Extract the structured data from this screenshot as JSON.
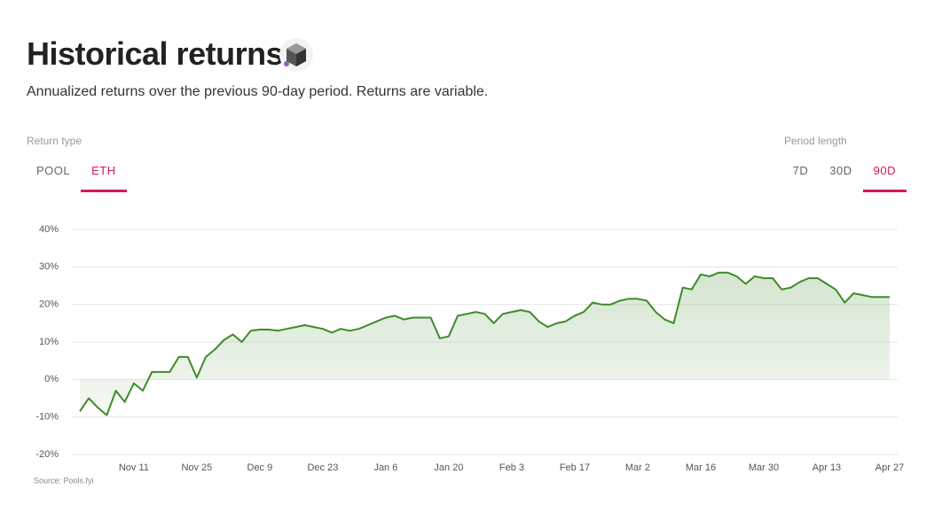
{
  "header": {
    "title": "Historical returns",
    "subtitle": "Annualized returns over the previous 90-day period. Returns are variable."
  },
  "controls": {
    "return_type": {
      "label": "Return type",
      "options": [
        "POOL",
        "ETH"
      ],
      "selected": 1
    },
    "period_length": {
      "label": "Period length",
      "options": [
        "7D",
        "30D",
        "90D"
      ],
      "selected": 2
    }
  },
  "chart_data": {
    "type": "line",
    "source": "Source: Pools.fyi",
    "grid": true,
    "color": "#3f8a2c",
    "categories": [
      null,
      null,
      null,
      null,
      null,
      null,
      "Nov 11",
      null,
      null,
      null,
      null,
      null,
      null,
      "Nov 25",
      null,
      null,
      null,
      null,
      null,
      null,
      "Dec 9",
      null,
      null,
      null,
      null,
      null,
      null,
      "Dec 23",
      null,
      null,
      null,
      null,
      null,
      null,
      "Jan 6",
      null,
      null,
      null,
      null,
      null,
      null,
      "Jan 20",
      null,
      null,
      null,
      null,
      null,
      null,
      "Feb 3",
      null,
      null,
      null,
      null,
      null,
      null,
      "Feb 17",
      null,
      null,
      null,
      null,
      null,
      null,
      "Mar 2",
      null,
      null,
      null,
      null,
      null,
      null,
      "Mar 16",
      null,
      null,
      null,
      null,
      null,
      null,
      "Mar 30",
      null,
      null,
      null,
      null,
      null,
      null,
      "Apr 13",
      null,
      null,
      null,
      null,
      null,
      null,
      "Apr 27"
    ],
    "values": [
      -8.5,
      -5,
      -7.5,
      -9.5,
      -3,
      -6,
      -1,
      -3,
      2,
      2,
      2,
      6,
      6,
      0.5,
      6,
      8,
      10.5,
      12,
      10,
      13,
      13.3,
      13.3,
      13,
      13.5,
      14,
      14.5,
      14,
      13.5,
      12.5,
      13.5,
      13,
      13.5,
      14.5,
      15.5,
      16.5,
      17,
      16,
      16.5,
      16.5,
      16.5,
      11,
      11.5,
      17,
      17.5,
      18,
      17.5,
      15,
      17.5,
      18,
      18.5,
      18,
      15.5,
      14,
      15,
      15.5,
      17,
      18,
      20.5,
      20,
      20,
      21,
      21.5,
      21.5,
      21,
      18,
      16,
      15,
      24.5,
      24,
      28,
      27.5,
      28.5,
      28.5,
      27.5,
      25.5,
      27.5,
      27,
      27,
      24,
      24.5,
      26,
      27,
      27,
      25.5,
      24,
      20.5,
      23,
      22.5,
      22,
      22,
      22
    ],
    "ylim": [
      -20,
      40
    ],
    "yticks": [
      {
        "value": -20,
        "label": "-20%"
      },
      {
        "value": -10,
        "label": "-10%"
      },
      {
        "value": 0,
        "label": "0%"
      },
      {
        "value": 10,
        "label": "10%"
      },
      {
        "value": 20,
        "label": "20%"
      },
      {
        "value": 30,
        "label": "30%"
      },
      {
        "value": 40,
        "label": "40%"
      }
    ]
  }
}
